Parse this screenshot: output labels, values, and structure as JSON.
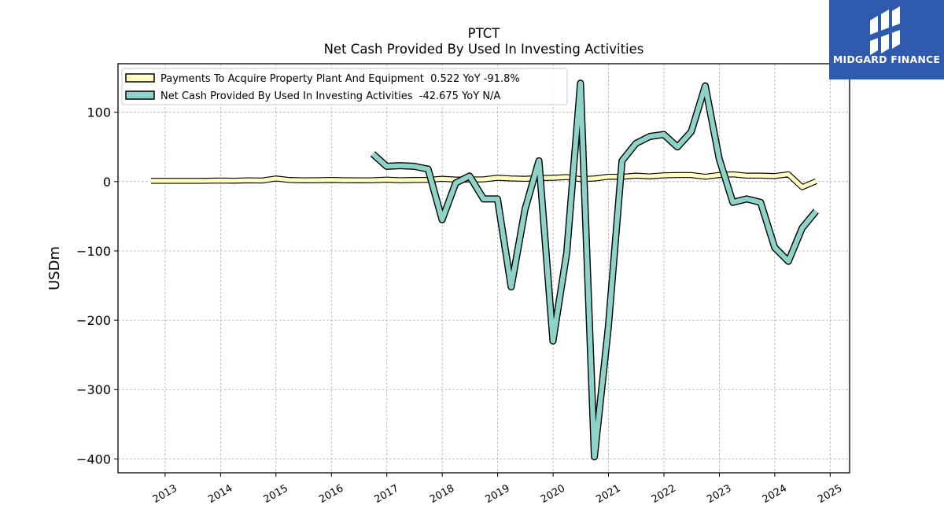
{
  "chart_data": {
    "type": "line",
    "title": "PTCT",
    "subtitle": "Net Cash Provided By Used In Investing Activities",
    "ylabel": "USDm",
    "xlabel": "",
    "ylim": [
      -420,
      170
    ],
    "xlim": [
      2012.15,
      2025.35
    ],
    "yticks": [
      -400,
      -300,
      -200,
      -100,
      0,
      100
    ],
    "ytick_labels": [
      "−400",
      "−300",
      "−200",
      "−100",
      "0",
      "100"
    ],
    "xticks": [
      2013,
      2014,
      2015,
      2016,
      2017,
      2018,
      2019,
      2020,
      2021,
      2022,
      2023,
      2024,
      2025
    ],
    "xtick_labels": [
      "2013",
      "2014",
      "2015",
      "2016",
      "2017",
      "2018",
      "2019",
      "2020",
      "2021",
      "2022",
      "2023",
      "2024",
      "2025"
    ],
    "grid": true,
    "legend_position": "top-left",
    "series": [
      {
        "name": "Payments To Acquire Property Plant And Equipment  0.522 YoY -91.8%",
        "color": "#ffffbf",
        "x": [
          "2012-09-30",
          "2012-12-31",
          "2013-03-31",
          "2013-06-30",
          "2013-09-30",
          "2013-12-31",
          "2014-03-31",
          "2014-06-30",
          "2014-09-30",
          "2014-12-31",
          "2015-03-31",
          "2015-06-30",
          "2015-09-30",
          "2015-12-31",
          "2016-03-31",
          "2016-06-30",
          "2016-09-30",
          "2016-12-31",
          "2017-03-31",
          "2017-06-30",
          "2017-09-30",
          "2017-12-31",
          "2018-03-31",
          "2018-06-30",
          "2018-09-30",
          "2018-12-31",
          "2019-03-31",
          "2019-06-30",
          "2019-09-30",
          "2019-12-31",
          "2020-03-31",
          "2020-06-30",
          "2020-09-30",
          "2020-12-31",
          "2021-03-31",
          "2021-06-30",
          "2021-09-30",
          "2021-12-31",
          "2022-03-31",
          "2022-06-30",
          "2022-09-30",
          "2022-12-31",
          "2023-03-31",
          "2023-06-30",
          "2023-09-30",
          "2023-12-31",
          "2024-03-31",
          "2024-06-30",
          "2024-09-30"
        ],
        "values": [
          1.0,
          1.0,
          1.0,
          1.0,
          1.2,
          1.5,
          1.3,
          1.8,
          1.5,
          4.5,
          2.3,
          1.8,
          2.0,
          2.4,
          2.0,
          1.9,
          2.0,
          2.8,
          2.0,
          2.3,
          2.5,
          4.0,
          2.9,
          3.0,
          3.2,
          5.5,
          4.5,
          4.0,
          5.0,
          5.5,
          6.5,
          3.5,
          4.5,
          7.0,
          7.0,
          8.5,
          7.5,
          9.0,
          9.5,
          9.5,
          7.0,
          9.5,
          10.5,
          8.5,
          8.5,
          8.0,
          10.5,
          -8.0,
          0.5
        ]
      },
      {
        "name": "Net Cash Provided By Used In Investing Activities  -42.675 YoY N/A",
        "color": "#8dd3c7",
        "x": [
          "2016-09-30",
          "2016-12-31",
          "2017-03-31",
          "2017-06-30",
          "2017-09-30",
          "2017-12-31",
          "2018-03-31",
          "2018-06-30",
          "2018-09-30",
          "2018-12-31",
          "2019-03-31",
          "2019-06-30",
          "2019-09-30",
          "2019-12-31",
          "2020-03-31",
          "2020-06-30",
          "2020-09-30",
          "2020-12-31",
          "2021-03-31",
          "2021-06-30",
          "2021-09-30",
          "2021-12-31",
          "2022-03-31",
          "2022-06-30",
          "2022-09-30",
          "2022-12-31",
          "2023-03-31",
          "2023-06-30",
          "2023-09-30",
          "2023-12-31",
          "2024-03-31",
          "2024-06-30",
          "2024-09-30"
        ],
        "values": [
          40,
          22,
          23,
          22,
          18,
          -55,
          -2,
          8,
          -25,
          -25,
          -152,
          -40,
          30,
          -230,
          -103,
          142,
          -397,
          -210,
          30,
          55,
          65,
          68,
          50,
          72,
          138,
          33,
          -30,
          -25,
          -30,
          -95,
          -115,
          -67,
          -42.675
        ]
      }
    ]
  },
  "logo": {
    "text": "MIDGARD FINANCE"
  }
}
